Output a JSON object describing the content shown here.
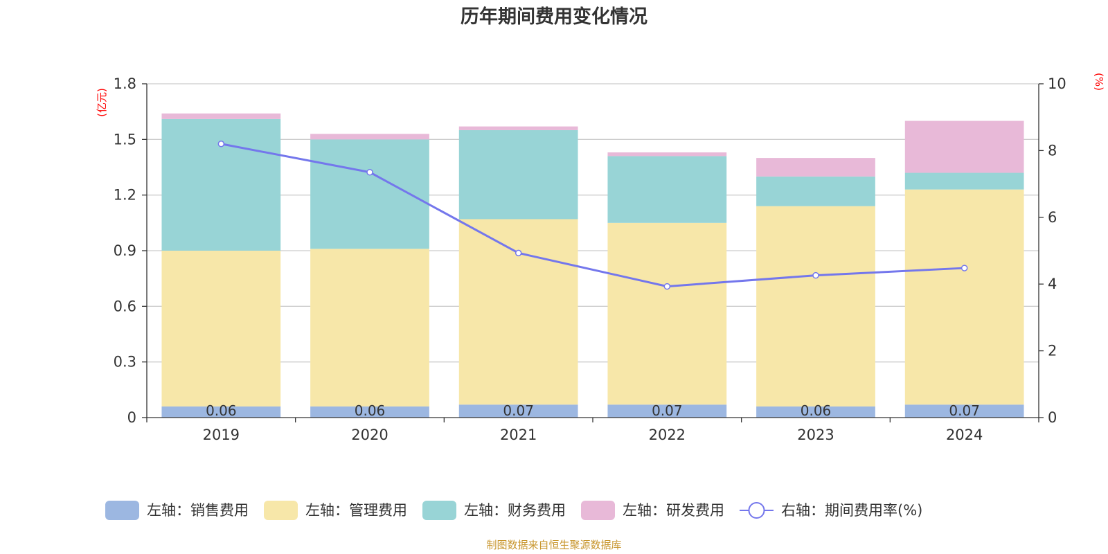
{
  "chart_data": {
    "type": "bar",
    "title": "历年期间费用变化情况",
    "categories": [
      "2019",
      "2020",
      "2021",
      "2022",
      "2023",
      "2024"
    ],
    "left_axis": {
      "unit": "(亿元)",
      "ylim": [
        0,
        1.8
      ],
      "ticks": [
        "0",
        "0.3",
        "0.6",
        "0.9",
        "1.2",
        "1.5",
        "1.8"
      ]
    },
    "right_axis": {
      "unit": "(%)",
      "ylim": [
        0,
        10
      ],
      "ticks": [
        "0",
        "2",
        "4",
        "6",
        "8",
        "10"
      ]
    },
    "series": [
      {
        "name": "左轴：销售费用",
        "kind": "bar",
        "color": "#9cb7e1",
        "values": [
          0.06,
          0.06,
          0.07,
          0.07,
          0.06,
          0.07
        ],
        "labels": [
          "0.06",
          "0.06",
          "0.07",
          "0.07",
          "0.06",
          "0.07"
        ]
      },
      {
        "name": "左轴：管理费用",
        "kind": "bar",
        "color": "#f7e7a9",
        "values": [
          0.84,
          0.85,
          1.0,
          0.98,
          1.08,
          1.16
        ]
      },
      {
        "name": "左轴：财务费用",
        "kind": "bar",
        "color": "#98d4d6",
        "values": [
          0.71,
          0.59,
          0.48,
          0.36,
          0.16,
          0.09
        ]
      },
      {
        "name": "左轴：研发费用",
        "kind": "bar",
        "color": "#e8b9d8",
        "values": [
          0.03,
          0.03,
          0.02,
          0.02,
          0.1,
          0.28
        ]
      },
      {
        "name": "右轴：期间费用率(%)",
        "kind": "line",
        "color": "#7477ec",
        "values": [
          8.2,
          7.35,
          4.93,
          3.93,
          4.26,
          4.48
        ]
      }
    ],
    "grid": true,
    "legend_position": "bottom"
  },
  "source_note": "制图数据来自恒生聚源数据库"
}
